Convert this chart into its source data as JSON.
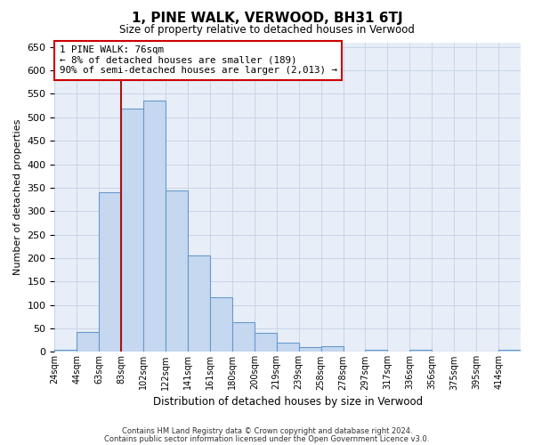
{
  "title": "1, PINE WALK, VERWOOD, BH31 6TJ",
  "subtitle": "Size of property relative to detached houses in Verwood",
  "xlabel": "Distribution of detached houses by size in Verwood",
  "ylabel": "Number of detached properties",
  "bar_labels": [
    "24sqm",
    "44sqm",
    "63sqm",
    "83sqm",
    "102sqm",
    "122sqm",
    "141sqm",
    "161sqm",
    "180sqm",
    "200sqm",
    "219sqm",
    "239sqm",
    "258sqm",
    "278sqm",
    "297sqm",
    "317sqm",
    "336sqm",
    "356sqm",
    "375sqm",
    "395sqm",
    "414sqm"
  ],
  "bar_values": [
    5,
    42,
    340,
    518,
    535,
    345,
    206,
    117,
    63,
    40,
    20,
    10,
    12,
    0,
    5,
    0,
    4,
    0,
    0,
    0,
    4
  ],
  "bar_color": "#c5d8f0",
  "bar_edge_color": "#6699cc",
  "bar_edge_width": 0.8,
  "red_line_color": "#aa1111",
  "grid_color": "#c8d4e8",
  "background_color": "#e8eef8",
  "ylim": [
    0,
    660
  ],
  "yticks": [
    0,
    50,
    100,
    150,
    200,
    250,
    300,
    350,
    400,
    450,
    500,
    550,
    600,
    650
  ],
  "annotation_title": "1 PINE WALK: 76sqm",
  "annotation_line1": "← 8% of detached houses are smaller (189)",
  "annotation_line2": "90% of semi-detached houses are larger (2,013) →",
  "annotation_box_facecolor": "#ffffff",
  "annotation_box_edgecolor": "#cc0000",
  "footer_line1": "Contains HM Land Registry data © Crown copyright and database right 2024.",
  "footer_line2": "Contains public sector information licensed under the Open Government Licence v3.0."
}
